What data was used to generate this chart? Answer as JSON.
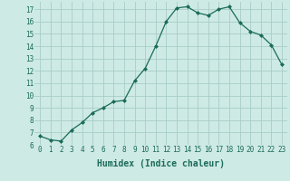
{
  "x": [
    0,
    1,
    2,
    3,
    4,
    5,
    6,
    7,
    8,
    9,
    10,
    11,
    12,
    13,
    14,
    15,
    16,
    17,
    18,
    19,
    20,
    21,
    22,
    23
  ],
  "y": [
    6.7,
    6.4,
    6.3,
    7.2,
    7.8,
    8.6,
    9.0,
    9.5,
    9.6,
    11.2,
    12.2,
    14.0,
    16.0,
    17.1,
    17.2,
    16.7,
    16.5,
    17.0,
    17.2,
    15.9,
    15.2,
    14.9,
    14.1,
    12.5
  ],
  "line_color": "#1a6b5a",
  "marker": "D",
  "markersize": 2,
  "linewidth": 0.9,
  "bg_color": "#ceeae4",
  "grid_color": "#a8cdc7",
  "xlabel": "Humidex (Indice chaleur)",
  "xlim": [
    -0.5,
    23.5
  ],
  "ylim": [
    6,
    17.6
  ],
  "yticks": [
    6,
    7,
    8,
    9,
    10,
    11,
    12,
    13,
    14,
    15,
    16,
    17
  ],
  "xticks": [
    0,
    1,
    2,
    3,
    4,
    5,
    6,
    7,
    8,
    9,
    10,
    11,
    12,
    13,
    14,
    15,
    16,
    17,
    18,
    19,
    20,
    21,
    22,
    23
  ],
  "tick_fontsize": 5.5,
  "xlabel_fontsize": 7,
  "tick_color": "#1a6b5a",
  "xlabel_color": "#1a6b5a"
}
